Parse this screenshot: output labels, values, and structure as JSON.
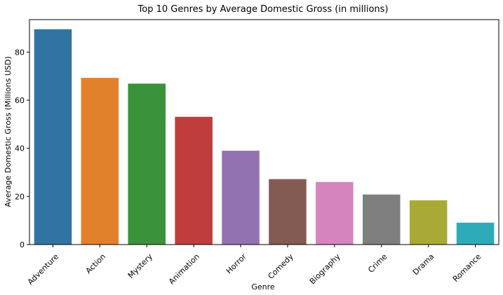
{
  "chart_data": {
    "type": "bar",
    "title": "Top 10 Genres by Average Domestic Gross (in millions)",
    "xlabel": "Genre",
    "ylabel": "Average Domestic Gross (Millions USD)",
    "categories": [
      "Adventure",
      "Action",
      "Mystery",
      "Animation",
      "Horror",
      "Comedy",
      "Biography",
      "Crime",
      "Drama",
      "Romance"
    ],
    "values": [
      89.5,
      69.3,
      66.9,
      53.1,
      39.0,
      27.2,
      26.0,
      20.8,
      18.4,
      9.1
    ],
    "colors": [
      "#3274a1",
      "#e1812c",
      "#3a923a",
      "#c03d3e",
      "#9372b2",
      "#845b53",
      "#d684bd",
      "#7f7f7f",
      "#a9aa35",
      "#2eabb8"
    ],
    "ylim": [
      0,
      93.5
    ],
    "yticks": [
      0,
      20,
      40,
      60,
      80
    ],
    "grid": false,
    "legend": "none"
  }
}
